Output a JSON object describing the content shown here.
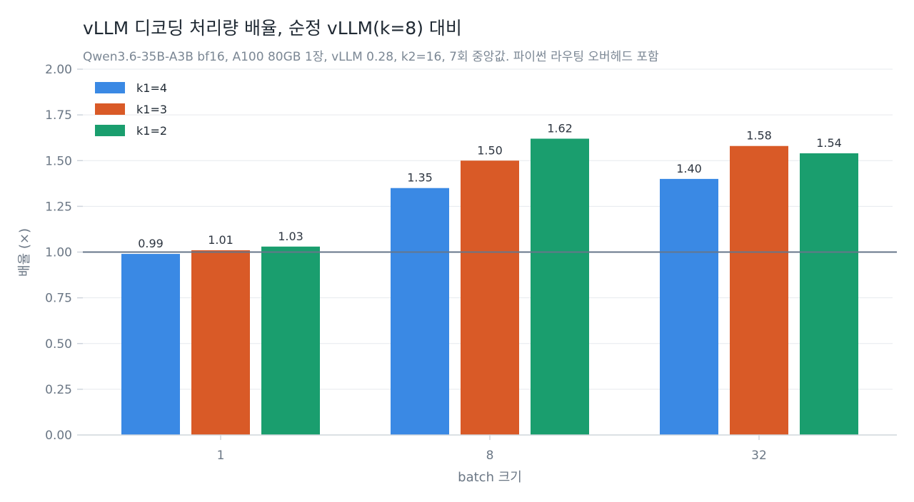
{
  "chart_data": {
    "type": "bar",
    "title": "vLLM 디코딩 처리량 배율, 순정 vLLM(k=8) 대비",
    "subtitle": "Qwen3.6-35B-A3B bf16, A100 80GB 1장, vLLM 0.28, k2=16, 7회 중앙값. 파이썬 라우팅 오버헤드 포함",
    "xlabel": "batch 크기",
    "ylabel": "배율 (×)",
    "categories": [
      "1",
      "8",
      "32"
    ],
    "series": [
      {
        "name": "k1=4",
        "color": "#3a89e4",
        "values": [
          0.99,
          1.35,
          1.4
        ]
      },
      {
        "name": "k1=3",
        "color": "#d95a27",
        "values": [
          1.01,
          1.5,
          1.58
        ]
      },
      {
        "name": "k1=2",
        "color": "#1a9e6e",
        "values": [
          1.03,
          1.62,
          1.54
        ]
      }
    ],
    "ylim": [
      0,
      2.0
    ],
    "yticks": [
      0.0,
      0.25,
      0.5,
      0.75,
      1.0,
      1.25,
      1.5,
      1.75,
      2.0
    ],
    "reference_line": 1.0,
    "grid": true,
    "legend_position": "top-left"
  }
}
